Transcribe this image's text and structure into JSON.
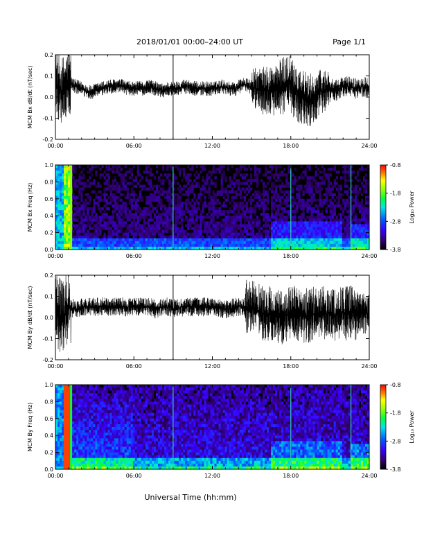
{
  "header": {
    "title": "2018/01/01   00:00–24:00 UT",
    "page": "Page 1/1"
  },
  "footer": {
    "xlabel": "Universal Time (hh:mm)"
  },
  "colorbar": {
    "tick_labels": [
      "-0.8",
      "-1.8",
      "-2.8",
      "-3.8"
    ],
    "label": "Log₁₀ Power"
  },
  "chart_data": [
    {
      "type": "line",
      "title": "",
      "xlabel": "",
      "ylabel": "MCM Bx dB/dt (nT/sec)",
      "x_tick_labels": [
        "00:00",
        "06:00",
        "12:00",
        "18:00",
        "24:00"
      ],
      "y_tick_labels": [
        "0.2",
        "0.1",
        "0.0",
        "-0.1",
        "-0.2"
      ],
      "x_range": [
        "00:00",
        "24:00"
      ],
      "ylim": [
        -0.2,
        0.2
      ],
      "series": [
        {
          "values": [
            0.06,
            0.03,
            0.07,
            0.05,
            0.04,
            0.02,
            0.03,
            0.04,
            0.05,
            0.05,
            0.05,
            0.04,
            0.04,
            0.04,
            0.05,
            0.04,
            0.03,
            0.04,
            0.04,
            0.05,
            0.05,
            0.04,
            0.04,
            0.04,
            0.04,
            0.05,
            0.04,
            0.04,
            0.06,
            0.05,
            0.04,
            0.03,
            0.03,
            0.03,
            0.05,
            0.07,
            0.03,
            0.0,
            -0.02,
            0.01,
            0.03,
            0.04,
            0.03,
            0.05,
            0.05,
            0.04,
            0.05,
            0.05
          ]
        }
      ]
    },
    {
      "type": "heatmap",
      "title": "",
      "xlabel": "",
      "ylabel": "MCM Bx Freq (Hz)",
      "x_tick_labels": [
        "00:00",
        "06:00",
        "12:00",
        "18:00",
        "24:00"
      ],
      "y_tick_labels": [
        "1.0",
        "0.8",
        "0.6",
        "0.4",
        "0.2",
        "0.0"
      ],
      "x_range": [
        "00:00",
        "24:00"
      ],
      "ylim": [
        0.0,
        1.0
      ],
      "colorbar_range": [
        -3.8,
        -0.8
      ],
      "colorbar_label": "Log₁₀ Power"
    },
    {
      "type": "line",
      "title": "",
      "xlabel": "",
      "ylabel": "MCM By dB/dt (nT/sec)",
      "x_tick_labels": [
        "00:00",
        "06:00",
        "12:00",
        "18:00",
        "24:00"
      ],
      "y_tick_labels": [
        "0.2",
        "0.1",
        "0.0",
        "-0.1",
        "-0.2"
      ],
      "x_range": [
        "00:00",
        "24:00"
      ],
      "ylim": [
        -0.2,
        0.2
      ],
      "series": [
        {
          "values": [
            0.04,
            0.0,
            0.05,
            0.04,
            0.05,
            0.05,
            0.05,
            0.05,
            0.05,
            0.05,
            0.05,
            0.05,
            0.05,
            0.05,
            0.05,
            0.04,
            0.05,
            0.05,
            0.04,
            0.05,
            0.05,
            0.05,
            0.05,
            0.05,
            0.05,
            0.04,
            0.04,
            0.05,
            0.05,
            0.05,
            0.04,
            0.02,
            0.02,
            0.01,
            0.0,
            0.02,
            0.02,
            0.01,
            0.01,
            0.02,
            0.02,
            0.02,
            0.01,
            0.02,
            0.02,
            0.02,
            0.02,
            0.02
          ]
        }
      ]
    },
    {
      "type": "heatmap",
      "title": "",
      "xlabel": "",
      "ylabel": "MCM By Freq (Hz)",
      "x_tick_labels": [
        "00:00",
        "06:00",
        "12:00",
        "18:00",
        "24:00"
      ],
      "y_tick_labels": [
        "1.0",
        "0.8",
        "0.6",
        "0.4",
        "0.2",
        "0.0"
      ],
      "x_range": [
        "00:00",
        "24:00"
      ],
      "ylim": [
        0.0,
        1.0
      ],
      "colorbar_range": [
        -3.8,
        -0.8
      ],
      "colorbar_label": "Log₁₀ Power"
    }
  ]
}
